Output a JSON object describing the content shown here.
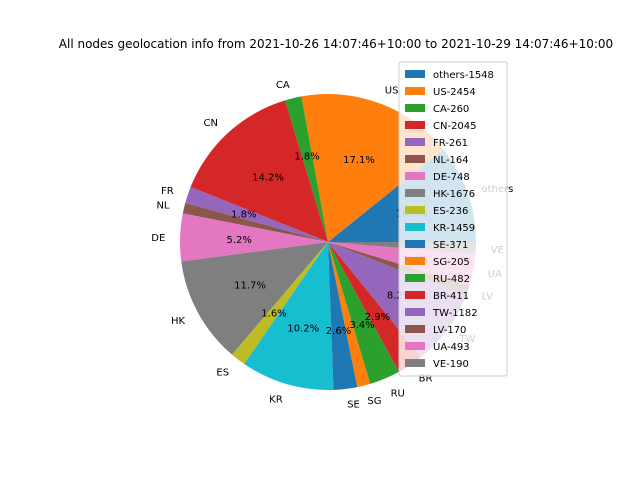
{
  "chart_data": {
    "type": "pie",
    "title": "All nodes geolocation info from 2021-10-26 14:07:46+10:00 to 2021-10-29 14:07:46+10:00",
    "autopct_threshold": 1.5,
    "start_angle_deg": 0,
    "direction": "counterclockwise",
    "legend_placement": "upper right",
    "slices": [
      {
        "label": "others",
        "legend": "others-1548",
        "value": 1548,
        "color": "#1f77b4"
      },
      {
        "label": "US",
        "legend": "US-2454",
        "value": 2454,
        "color": "#ff7f0e"
      },
      {
        "label": "CA",
        "legend": "CA-260",
        "value": 260,
        "color": "#2ca02c"
      },
      {
        "label": "CN",
        "legend": "CN-2045",
        "value": 2045,
        "color": "#d62728"
      },
      {
        "label": "FR",
        "legend": "FR-261",
        "value": 261,
        "color": "#9467bd"
      },
      {
        "label": "NL",
        "legend": "NL-164",
        "value": 164,
        "color": "#8c564b"
      },
      {
        "label": "DE",
        "legend": "DE-748",
        "value": 748,
        "color": "#e377c2"
      },
      {
        "label": "HK",
        "legend": "HK-1676",
        "value": 1676,
        "color": "#7f7f7f"
      },
      {
        "label": "ES",
        "legend": "ES-236",
        "value": 236,
        "color": "#bcbd22"
      },
      {
        "label": "KR",
        "legend": "KR-1459",
        "value": 1459,
        "color": "#17becf"
      },
      {
        "label": "SE",
        "legend": "SE-371",
        "value": 371,
        "color": "#1f77b4"
      },
      {
        "label": "SG",
        "legend": "SG-205",
        "value": 205,
        "color": "#ff7f0e"
      },
      {
        "label": "RU",
        "legend": "RU-482",
        "value": 482,
        "color": "#2ca02c"
      },
      {
        "label": "BR",
        "legend": "BR-411",
        "value": 411,
        "color": "#d62728"
      },
      {
        "label": "TW",
        "legend": "TW-1182",
        "value": 1182,
        "color": "#9467bd"
      },
      {
        "label": "LV",
        "legend": "LV-170",
        "value": 170,
        "color": "#8c564b"
      },
      {
        "label": "UA",
        "legend": "UA-493",
        "value": 493,
        "color": "#e377c2"
      },
      {
        "label": "VE",
        "legend": "VE-190",
        "value": 190,
        "color": "#7f7f7f"
      }
    ]
  }
}
